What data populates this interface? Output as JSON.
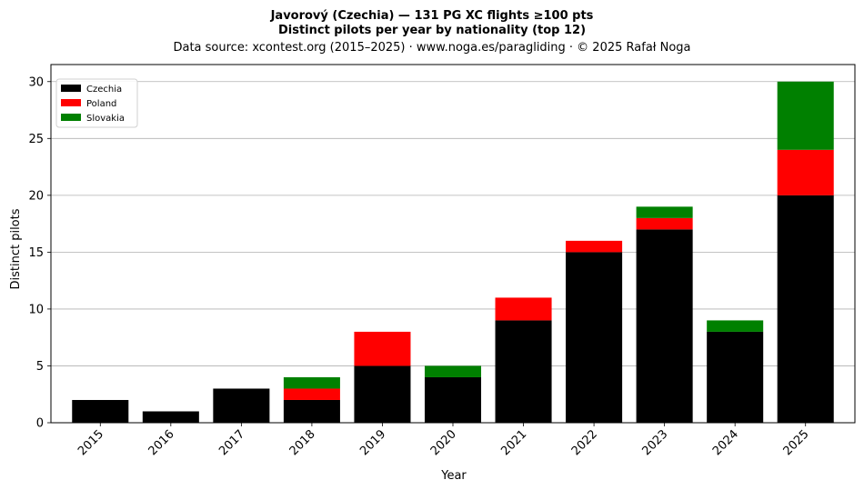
{
  "chart_data": {
    "type": "bar",
    "stacked": true,
    "title": "Javorový (Czechia)  —  131 PG XC flights ≥100 pts",
    "subtitle": "Distinct pilots per year by nationality (top 12)",
    "source": "Data source: xcontest.org (2015–2025)  ·  www.noga.es/paragliding  ·  © 2025 Rafał Noga",
    "xlabel": "Year",
    "ylabel": "Distinct pilots",
    "ylim": [
      0,
      31.5
    ],
    "yticks": [
      0,
      5,
      10,
      15,
      20,
      25,
      30
    ],
    "grid": "horizontal",
    "legend_position": "top-left",
    "categories": [
      "2015",
      "2016",
      "2017",
      "2018",
      "2019",
      "2020",
      "2021",
      "2022",
      "2023",
      "2024",
      "2025"
    ],
    "series": [
      {
        "name": "Czechia",
        "color": "#000000",
        "values": [
          2,
          1,
          3,
          2,
          5,
          4,
          9,
          15,
          17,
          8,
          20
        ]
      },
      {
        "name": "Poland",
        "color": "#ff0000",
        "values": [
          0,
          0,
          0,
          1,
          3,
          0,
          2,
          1,
          1,
          0,
          4
        ]
      },
      {
        "name": "Slovakia",
        "color": "#008000",
        "values": [
          0,
          0,
          0,
          1,
          0,
          1,
          0,
          0,
          1,
          1,
          6
        ]
      }
    ]
  }
}
